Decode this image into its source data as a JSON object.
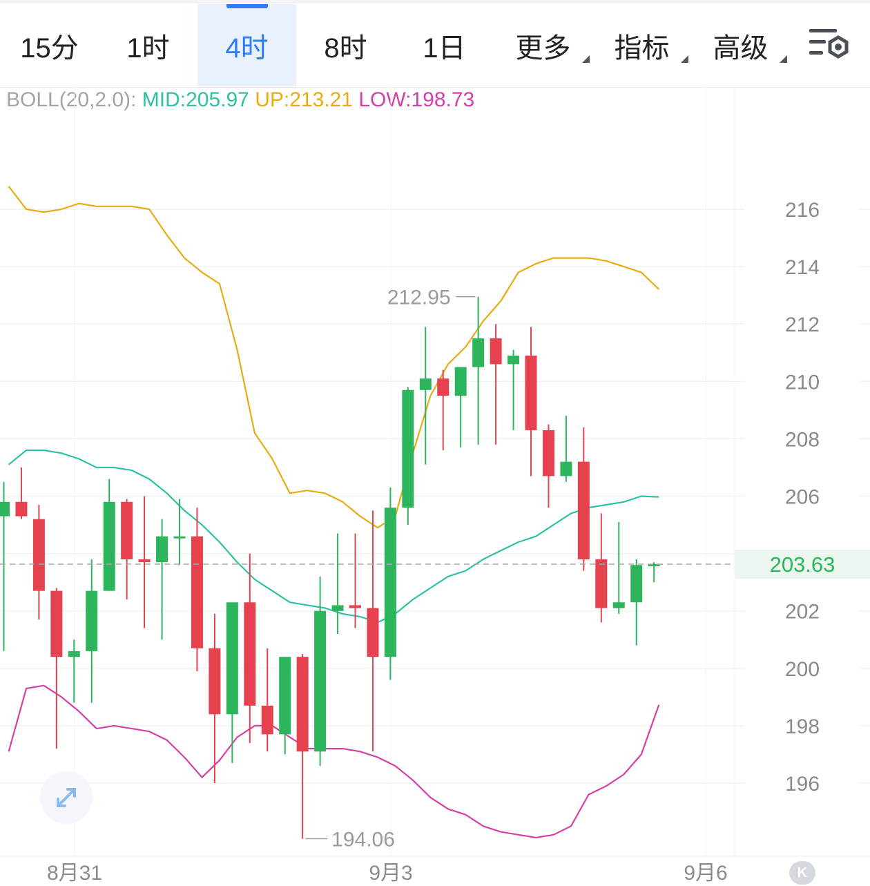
{
  "tabs": [
    {
      "label": "15分",
      "active": false,
      "dropdown": false
    },
    {
      "label": "1时",
      "active": false,
      "dropdown": false
    },
    {
      "label": "4时",
      "active": true,
      "dropdown": false
    },
    {
      "label": "8时",
      "active": false,
      "dropdown": false
    },
    {
      "label": "1日",
      "active": false,
      "dropdown": false
    },
    {
      "label": "更多",
      "active": false,
      "dropdown": true
    },
    {
      "label": "指标",
      "active": false,
      "dropdown": true
    },
    {
      "label": "高级",
      "active": false,
      "dropdown": true
    }
  ],
  "settings_icon": "chart-settings-icon",
  "legend": {
    "name": "BOLL(20,2.0):",
    "mid": "MID:205.97",
    "up": "UP:213.21",
    "low": "LOW:198.73"
  },
  "colors": {
    "up_candle": "#2db55d",
    "down_candle": "#e5414f",
    "mid": "#2fc0a4",
    "upper": "#e8ab14",
    "lower": "#d63fa6",
    "accent": "#2d7cf0"
  },
  "chart_data": {
    "type": "candlestick",
    "y_ticks": [
      216,
      214,
      212,
      210,
      208,
      206,
      202,
      200,
      198,
      196
    ],
    "ylim": [
      194.06,
      216.5
    ],
    "x_labels": [
      "8月31",
      "9月3",
      "9月6"
    ],
    "current_price": "203.63",
    "high_annotation": "212.95",
    "low_annotation": "194.06",
    "candles": [
      {
        "o": 205.3,
        "h": 206.5,
        "l": 200.6,
        "c": 205.8
      },
      {
        "o": 205.8,
        "h": 207.0,
        "l": 205.2,
        "c": 205.3
      },
      {
        "o": 205.2,
        "h": 205.7,
        "l": 201.7,
        "c": 202.7
      },
      {
        "o": 202.7,
        "h": 202.8,
        "l": 197.2,
        "c": 200.4
      },
      {
        "o": 200.4,
        "h": 201.0,
        "l": 198.8,
        "c": 200.6
      },
      {
        "o": 200.6,
        "h": 203.8,
        "l": 198.8,
        "c": 202.7
      },
      {
        "o": 202.7,
        "h": 206.6,
        "l": 202.7,
        "c": 205.8
      },
      {
        "o": 205.8,
        "h": 205.9,
        "l": 202.4,
        "c": 203.8
      },
      {
        "o": 203.8,
        "h": 206.0,
        "l": 201.4,
        "c": 203.7
      },
      {
        "o": 203.7,
        "h": 205.2,
        "l": 201.0,
        "c": 204.6
      },
      {
        "o": 204.6,
        "h": 205.9,
        "l": 203.6,
        "c": 204.6
      },
      {
        "o": 204.6,
        "h": 205.6,
        "l": 199.9,
        "c": 200.7
      },
      {
        "o": 200.7,
        "h": 201.9,
        "l": 196.0,
        "c": 198.4
      },
      {
        "o": 198.4,
        "h": 202.2,
        "l": 196.7,
        "c": 202.3
      },
      {
        "o": 202.3,
        "h": 204.0,
        "l": 197.4,
        "c": 198.7
      },
      {
        "o": 198.7,
        "h": 200.7,
        "l": 197.1,
        "c": 197.7
      },
      {
        "o": 197.7,
        "h": 200.3,
        "l": 197.0,
        "c": 200.4
      },
      {
        "o": 200.4,
        "h": 200.5,
        "l": 194.06,
        "c": 197.1
      },
      {
        "o": 197.1,
        "h": 203.2,
        "l": 196.6,
        "c": 202.0
      },
      {
        "o": 202.0,
        "h": 204.7,
        "l": 201.2,
        "c": 202.2
      },
      {
        "o": 202.2,
        "h": 204.7,
        "l": 201.4,
        "c": 202.1
      },
      {
        "o": 202.1,
        "h": 205.5,
        "l": 197.1,
        "c": 200.4
      },
      {
        "o": 200.4,
        "h": 206.3,
        "l": 199.6,
        "c": 205.6
      },
      {
        "o": 205.6,
        "h": 209.8,
        "l": 205.0,
        "c": 209.7
      },
      {
        "o": 209.7,
        "h": 211.9,
        "l": 207.1,
        "c": 210.1
      },
      {
        "o": 210.1,
        "h": 210.4,
        "l": 207.6,
        "c": 209.5
      },
      {
        "o": 209.5,
        "h": 210.5,
        "l": 207.7,
        "c": 210.5
      },
      {
        "o": 210.5,
        "h": 212.95,
        "l": 207.8,
        "c": 211.5
      },
      {
        "o": 211.5,
        "h": 212.0,
        "l": 207.8,
        "c": 210.6
      },
      {
        "o": 210.6,
        "h": 211.1,
        "l": 208.3,
        "c": 210.9
      },
      {
        "o": 210.9,
        "h": 211.9,
        "l": 206.7,
        "c": 208.3
      },
      {
        "o": 208.3,
        "h": 208.5,
        "l": 205.6,
        "c": 206.7
      },
      {
        "o": 206.7,
        "h": 208.8,
        "l": 206.5,
        "c": 207.2
      },
      {
        "o": 207.2,
        "h": 208.4,
        "l": 203.4,
        "c": 203.8
      },
      {
        "o": 203.8,
        "h": 205.4,
        "l": 201.6,
        "c": 202.1
      },
      {
        "o": 202.1,
        "h": 205.1,
        "l": 201.9,
        "c": 202.3
      },
      {
        "o": 202.3,
        "h": 203.8,
        "l": 200.8,
        "c": 203.6
      },
      {
        "o": 203.6,
        "h": 203.7,
        "l": 203.0,
        "c": 203.63
      }
    ],
    "boll_upper": [
      216.8,
      216.0,
      215.9,
      216.0,
      216.2,
      216.1,
      216.1,
      216.1,
      216.0,
      215.1,
      214.3,
      213.8,
      213.4,
      211.1,
      208.2,
      207.3,
      206.1,
      206.2,
      206.1,
      205.8,
      205.3,
      204.9,
      205.3,
      207.5,
      209.5,
      210.6,
      211.2,
      212.1,
      212.8,
      213.8,
      214.1,
      214.3,
      214.3,
      214.3,
      214.2,
      214.0,
      213.8,
      213.21
    ],
    "boll_mid": [
      207.1,
      207.6,
      207.6,
      207.5,
      207.3,
      207.0,
      207.0,
      206.9,
      206.6,
      206.1,
      205.5,
      205.0,
      204.4,
      203.7,
      203.1,
      202.7,
      202.3,
      202.2,
      202.1,
      201.9,
      201.8,
      201.6,
      201.9,
      202.4,
      202.8,
      203.2,
      203.4,
      203.8,
      204.1,
      204.4,
      204.6,
      205.0,
      205.4,
      205.6,
      205.7,
      205.8,
      206.0,
      205.97
    ],
    "boll_lower": [
      197.1,
      199.3,
      199.4,
      199.0,
      198.5,
      197.9,
      198.0,
      197.9,
      197.8,
      197.5,
      196.9,
      196.2,
      196.8,
      197.6,
      198.0,
      198.0,
      197.6,
      197.2,
      197.2,
      197.2,
      197.1,
      196.9,
      196.6,
      196.1,
      195.5,
      195.1,
      194.9,
      194.5,
      194.3,
      194.2,
      194.1,
      194.2,
      194.5,
      195.6,
      195.9,
      196.3,
      197.0,
      198.73
    ]
  }
}
